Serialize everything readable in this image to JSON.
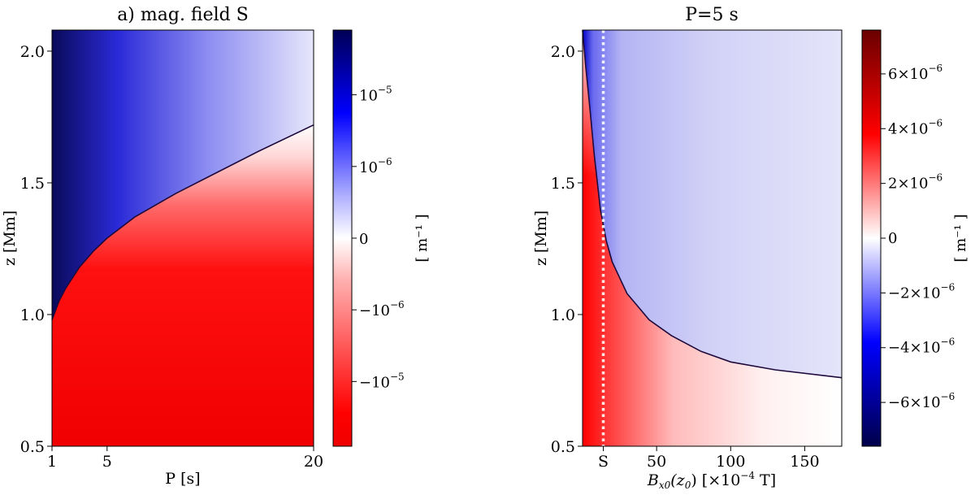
{
  "chart_data": [
    {
      "type": "heatmap",
      "title": "a) mag. field S",
      "xlabel": "P [s]",
      "ylabel": "z [Mm]",
      "xlim": [
        1,
        20
      ],
      "ylim": [
        0.5,
        2.08
      ],
      "xticks": [
        {
          "value": 1,
          "label": "1"
        },
        {
          "value": 5,
          "label": "5"
        },
        {
          "value": 20,
          "label": "20"
        }
      ],
      "yticks": [
        {
          "value": 0.5,
          "label": "0.5"
        },
        {
          "value": 1.0,
          "label": "1.0"
        },
        {
          "value": 1.5,
          "label": "1.5"
        },
        {
          "value": 2.0,
          "label": "2.0"
        }
      ],
      "zero_contour": {
        "p": [
          1,
          1.5,
          2,
          3,
          4,
          5,
          7,
          10,
          13,
          16,
          20
        ],
        "z": [
          0.98,
          1.05,
          1.1,
          1.18,
          1.24,
          1.29,
          1.37,
          1.46,
          1.54,
          1.62,
          1.72
        ]
      },
      "colorbar": {
        "label": "[ m⁻¹ ]",
        "scale": "symlog",
        "ticks": [
          {
            "value": 1e-05,
            "base": "10",
            "exp": "−5"
          },
          {
            "value": 1e-06,
            "base": "10",
            "exp": "−6"
          },
          {
            "value": 0,
            "base": "0",
            "exp": ""
          },
          {
            "value": -1e-06,
            "base": "−10",
            "exp": "−6"
          },
          {
            "value": -1e-05,
            "base": "−10",
            "exp": "−5"
          }
        ]
      }
    },
    {
      "type": "heatmap",
      "title": "P=5 s",
      "xlabel_main": "B",
      "xlabel_sub": "x0",
      "xlabel_arg": "(z",
      "xlabel_arg_sub": "0",
      "xlabel_rest": ") [×10",
      "xlabel_exp": "−4",
      "xlabel_unit": " T]",
      "ylabel": "z [Mm]",
      "xlim": [
        0,
        175
      ],
      "ylim": [
        0.5,
        2.08
      ],
      "xticks": [
        {
          "value": 50,
          "label": "50"
        },
        {
          "value": 100,
          "label": "100"
        },
        {
          "value": 150,
          "label": "150"
        }
      ],
      "yticks": [
        {
          "value": 0.5,
          "label": "0.5"
        },
        {
          "value": 1.0,
          "label": "1.0"
        },
        {
          "value": 1.5,
          "label": "1.5"
        },
        {
          "value": 2.0,
          "label": "2.0"
        }
      ],
      "marker": {
        "label": "S",
        "value": 14
      },
      "zero_contour": {
        "b": [
          0,
          2,
          5,
          8,
          12,
          16,
          20,
          30,
          45,
          60,
          80,
          100,
          130,
          175
        ],
        "z": [
          2.08,
          1.95,
          1.78,
          1.6,
          1.4,
          1.28,
          1.2,
          1.08,
          0.98,
          0.92,
          0.86,
          0.82,
          0.79,
          0.76
        ]
      },
      "colorbar": {
        "label": "[ m⁻¹ ]",
        "scale": "linear",
        "range": [
          -7.6e-06,
          7.6e-06
        ],
        "ticks": [
          {
            "value": 6e-06,
            "base": "6×10",
            "exp": "−6"
          },
          {
            "value": 4e-06,
            "base": "4×10",
            "exp": "−6"
          },
          {
            "value": 2e-06,
            "base": "2×10",
            "exp": "−6"
          },
          {
            "value": 0,
            "base": "0",
            "exp": ""
          },
          {
            "value": -2e-06,
            "base": "−2×10",
            "exp": "−6"
          },
          {
            "value": -4e-06,
            "base": "−4×10",
            "exp": "−6"
          },
          {
            "value": -6e-06,
            "base": "−6×10",
            "exp": "−6"
          }
        ]
      }
    }
  ]
}
